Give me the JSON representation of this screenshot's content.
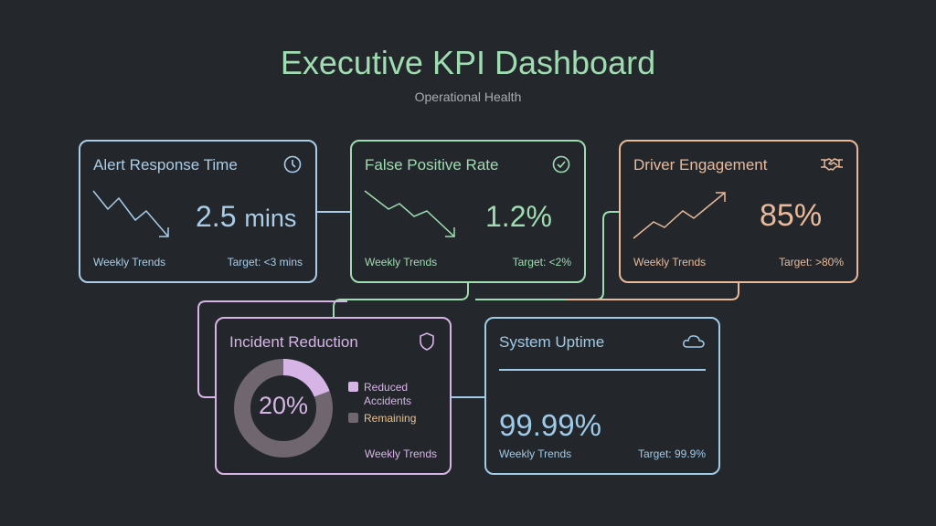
{
  "header": {
    "title": "Executive KPI Dashboard",
    "subtitle": "Operational Health"
  },
  "colors": {
    "background": "#24272b",
    "blue": "#a9cde8",
    "green": "#9fdcb1",
    "orange": "#e9b99a",
    "purple": "#d6b4e6",
    "uptime_blue": "#9fcbe8"
  },
  "cards": [
    {
      "title": "Alert Response Time",
      "icon": "clock-icon",
      "value": "2.5",
      "unit": "mins",
      "trend": "down",
      "footer_left": "Weekly Trends",
      "footer_right": "Target: <3 mins"
    },
    {
      "title": "False Positive Rate",
      "icon": "check-circle-icon",
      "value": "1.2%",
      "trend": "down",
      "footer_left": "Weekly Trends",
      "footer_right": "Target: <2%"
    },
    {
      "title": "Driver Engagement",
      "icon": "handshake-icon",
      "value": "85%",
      "trend": "up",
      "footer_left": "Weekly Trends",
      "footer_right": "Target: >80%"
    },
    {
      "title": "Incident Reduction",
      "icon": "shield-icon",
      "value": "20%",
      "donut_percent": 20,
      "legend": [
        "Reduced Accidents",
        "Remaining"
      ],
      "footer_left": "Weekly Trends"
    },
    {
      "title": "System Uptime",
      "icon": "cloud-icon",
      "value": "99.99%",
      "footer_left": "Weekly Trends",
      "footer_right": "Target: 99.9%"
    }
  ]
}
